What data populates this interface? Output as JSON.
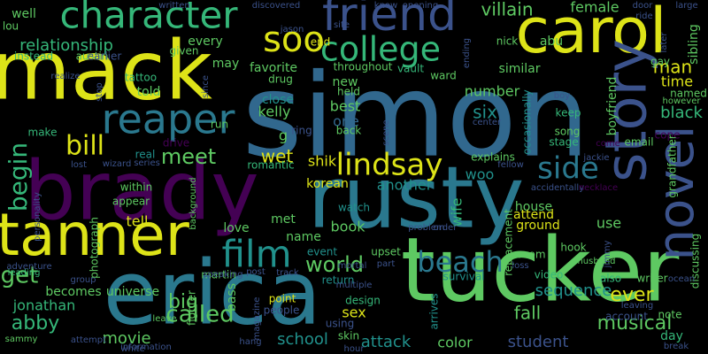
{
  "words": [
    {
      "text": "simon",
      "color": "#31688e"
    },
    {
      "text": "erica",
      "color": "#2a788e"
    },
    {
      "text": "tucker",
      "color": "#5ec962"
    },
    {
      "text": "rusty",
      "color": "#2a788e"
    },
    {
      "text": "brady",
      "color": "#440154"
    },
    {
      "text": "mack",
      "color": "#dde318"
    },
    {
      "text": "carol",
      "color": "#dde318"
    },
    {
      "text": "tanner",
      "color": "#dde318"
    },
    {
      "text": "story",
      "color": "#3b528b"
    },
    {
      "text": "friend",
      "color": "#3b528b"
    },
    {
      "text": "character",
      "color": "#35b779"
    },
    {
      "text": "novel",
      "color": "#3b528b"
    },
    {
      "text": "reaper",
      "color": "#2a788e"
    },
    {
      "text": "college",
      "color": "#35b779"
    },
    {
      "text": "soo",
      "color": "#dde318"
    },
    {
      "text": "beach",
      "color": "#2a788e"
    },
    {
      "text": "lindsay",
      "color": "#dde318"
    },
    {
      "text": "film",
      "color": "#21918c"
    },
    {
      "text": "side",
      "color": "#2a788e"
    },
    {
      "text": "bill",
      "color": "#dde318"
    },
    {
      "text": "begin",
      "color": "#35b779"
    },
    {
      "text": "get",
      "color": "#5ec962"
    },
    {
      "text": "called",
      "color": "#5ec962"
    },
    {
      "text": "world",
      "color": "#5ec962"
    },
    {
      "text": "meet",
      "color": "#5ec962"
    },
    {
      "text": "relationship",
      "color": "#35b779"
    },
    {
      "text": "abby",
      "color": "#35b779"
    },
    {
      "text": "jonathan",
      "color": "#35b779"
    },
    {
      "text": "movie",
      "color": "#5ec962"
    },
    {
      "text": "school",
      "color": "#21918c"
    },
    {
      "text": "musical",
      "color": "#5ec962"
    },
    {
      "text": "fall",
      "color": "#5ec962"
    },
    {
      "text": "ever",
      "color": "#dde318"
    },
    {
      "text": "color",
      "color": "#5ec962"
    },
    {
      "text": "student",
      "color": "#3b528b"
    },
    {
      "text": "attack",
      "color": "#21918c"
    },
    {
      "text": "sequence",
      "color": "#21918c"
    },
    {
      "text": "big",
      "color": "#5ec962"
    },
    {
      "text": "becomes",
      "color": "#5ec962"
    },
    {
      "text": "universe",
      "color": "#5ec962"
    },
    {
      "text": "villain",
      "color": "#5ec962"
    },
    {
      "text": "female",
      "color": "#5ec962"
    },
    {
      "text": "man",
      "color": "#dde318"
    },
    {
      "text": "time",
      "color": "#dde318"
    },
    {
      "text": "black",
      "color": "#35b779"
    },
    {
      "text": "six",
      "color": "#21918c"
    },
    {
      "text": "best",
      "color": "#5ec962"
    },
    {
      "text": "one",
      "color": "#31688e"
    },
    {
      "text": "kelly",
      "color": "#5ec962"
    },
    {
      "text": "wet",
      "color": "#dde318"
    },
    {
      "text": "shik",
      "color": "#dde318"
    },
    {
      "text": "another",
      "color": "#21918c"
    },
    {
      "text": "korean",
      "color": "#dde318"
    },
    {
      "text": "woo",
      "color": "#21918c"
    },
    {
      "text": "wife",
      "color": "#35b779"
    },
    {
      "text": "book",
      "color": "#5ec962"
    },
    {
      "text": "name",
      "color": "#5ec962"
    },
    {
      "text": "met",
      "color": "#5ec962"
    },
    {
      "text": "love",
      "color": "#5ec962"
    },
    {
      "text": "tell",
      "color": "#dde318"
    },
    {
      "text": "told",
      "color": "#5ec962"
    },
    {
      "text": "favorite",
      "color": "#5ec962"
    },
    {
      "text": "may",
      "color": "#5ec962"
    },
    {
      "text": "every",
      "color": "#5ec962"
    },
    {
      "text": "well",
      "color": "#5ec962"
    },
    {
      "text": "number",
      "color": "#5ec962"
    },
    {
      "text": "similar",
      "color": "#5ec962"
    },
    {
      "text": "abu",
      "color": "#5ec962"
    },
    {
      "text": "sibling",
      "color": "#5ec962"
    },
    {
      "text": "named",
      "color": "#5ec962"
    },
    {
      "text": "keep",
      "color": "#35b779"
    },
    {
      "text": "song",
      "color": "#5ec962"
    },
    {
      "text": "stage",
      "color": "#35b779"
    },
    {
      "text": "email",
      "color": "#5ec962"
    },
    {
      "text": "cope",
      "color": "#440154"
    },
    {
      "text": "house",
      "color": "#5ec962"
    },
    {
      "text": "ground",
      "color": "#dde318"
    },
    {
      "text": "attend",
      "color": "#dde318"
    },
    {
      "text": "use",
      "color": "#5ec962"
    },
    {
      "text": "room",
      "color": "#5ec962"
    },
    {
      "text": "sex",
      "color": "#dde318"
    },
    {
      "text": "martin",
      "color": "#5ec962"
    },
    {
      "text": "bass",
      "color": "#5ec962"
    },
    {
      "text": "point",
      "color": "#dde318"
    },
    {
      "text": "people",
      "color": "#3b528b"
    },
    {
      "text": "day",
      "color": "#35b779"
    },
    {
      "text": "account",
      "color": "#3b528b"
    },
    {
      "text": "note",
      "color": "#5ec962"
    },
    {
      "text": "also",
      "color": "#35b779"
    },
    {
      "text": "writer",
      "color": "#5ec962"
    },
    {
      "text": "return",
      "color": "#21918c"
    },
    {
      "text": "video",
      "color": "#35b779"
    },
    {
      "text": "survival",
      "color": "#21918c"
    },
    {
      "text": "design",
      "color": "#35b779"
    },
    {
      "text": "skin",
      "color": "#5ec962"
    },
    {
      "text": "using",
      "color": "#3b528b"
    },
    {
      "text": "nick",
      "color": "#5ec962"
    },
    {
      "text": "drug",
      "color": "#5ec962"
    },
    {
      "text": "new",
      "color": "#5ec962"
    },
    {
      "text": "close",
      "color": "#21918c"
    },
    {
      "text": "held",
      "color": "#5ec962"
    },
    {
      "text": "make",
      "color": "#35b779"
    },
    {
      "text": "back",
      "color": "#5ec962"
    },
    {
      "text": "explains",
      "color": "#5ec962"
    },
    {
      "text": "watch",
      "color": "#21918c"
    },
    {
      "text": "event",
      "color": "#21918c"
    },
    {
      "text": "upset",
      "color": "#5ec962"
    },
    {
      "text": "leading",
      "color": "#35b779"
    },
    {
      "text": "lou",
      "color": "#5ec962"
    },
    {
      "text": "instead",
      "color": "#35b779"
    },
    {
      "text": "austin",
      "color": "#5ec962"
    },
    {
      "text": "tattoo",
      "color": "#35b779"
    },
    {
      "text": "within",
      "color": "#5ec962"
    },
    {
      "text": "appear",
      "color": "#5ec962"
    },
    {
      "text": "drive",
      "color": "#440154"
    },
    {
      "text": "real",
      "color": "#21918c"
    },
    {
      "text": "romantic",
      "color": "#35b779"
    },
    {
      "text": "given",
      "color": "#5ec962"
    },
    {
      "text": "throughout",
      "color": "#5ec962"
    },
    {
      "text": "vault",
      "color": "#35b779"
    },
    {
      "text": "ward",
      "color": "#5ec962"
    },
    {
      "text": "end",
      "color": "#dde318"
    },
    {
      "text": "run",
      "color": "#5ec962"
    },
    {
      "text": "earlier",
      "color": "#3b528b"
    },
    {
      "text": "gay",
      "color": "#5ec962"
    },
    {
      "text": "however",
      "color": "#5ec962"
    },
    {
      "text": "boyfriend",
      "color": "#5ec962"
    },
    {
      "text": "grandfather",
      "color": "#5ec962"
    },
    {
      "text": "discussing",
      "color": "#5ec962"
    },
    {
      "text": "occasionally",
      "color": "#21918c"
    },
    {
      "text": "replacement",
      "color": "#5ec962"
    },
    {
      "text": "arrives",
      "color": "#21918c"
    },
    {
      "text": "hook",
      "color": "#5ec962"
    },
    {
      "text": "husband",
      "color": "#5ec962"
    },
    {
      "text": "fighter",
      "color": "#5ec962"
    },
    {
      "text": "photograph",
      "color": "#5ec962"
    },
    {
      "text": "background",
      "color": "#5ec962"
    },
    {
      "text": "leave",
      "color": "#5ec962"
    },
    {
      "text": "attempt",
      "color": "#3b528b"
    },
    {
      "text": "sammy",
      "color": "#5ec962"
    },
    {
      "text": "information",
      "color": "#3b528b"
    },
    {
      "text": "hang",
      "color": "#3b528b"
    },
    {
      "text": "hour",
      "color": "#3b528b"
    },
    {
      "text": "break",
      "color": "#3b528b"
    },
    {
      "text": "door",
      "color": "#3b528b"
    },
    {
      "text": "ride",
      "color": "#3b528b"
    },
    {
      "text": "large",
      "color": "#3b528b"
    },
    {
      "text": "later",
      "color": "#3b528b"
    },
    {
      "text": "opening",
      "color": "#3b528b"
    },
    {
      "text": "know",
      "color": "#3b528b"
    },
    {
      "text": "discovered",
      "color": "#3b528b"
    },
    {
      "text": "written",
      "color": "#3b528b"
    },
    {
      "text": "white",
      "color": "#3b528b"
    },
    {
      "text": "site",
      "color": "#3b528b"
    },
    {
      "text": "jason",
      "color": "#3b528b"
    },
    {
      "text": "realize",
      "color": "#3b528b"
    },
    {
      "text": "stop",
      "color": "#3b528b"
    },
    {
      "text": "since",
      "color": "#3b528b"
    },
    {
      "text": "wizard",
      "color": "#3b528b"
    },
    {
      "text": "series",
      "color": "#3b528b"
    },
    {
      "text": "lost",
      "color": "#3b528b"
    },
    {
      "text": "personality",
      "color": "#3b528b"
    },
    {
      "text": "adventure",
      "color": "#3b528b"
    },
    {
      "text": "group",
      "color": "#3b528b"
    },
    {
      "text": "speaking",
      "color": "#3b528b"
    },
    {
      "text": "post",
      "color": "#3b528b"
    },
    {
      "text": "track",
      "color": "#3b528b"
    },
    {
      "text": "magazine",
      "color": "#3b528b"
    },
    {
      "text": "multiple",
      "color": "#3b528b"
    },
    {
      "text": "mortal",
      "color": "#3b528b"
    },
    {
      "text": "part",
      "color": "#3b528b"
    },
    {
      "text": "loss",
      "color": "#3b528b"
    },
    {
      "text": "jimmy",
      "color": "#3b528b"
    },
    {
      "text": "order",
      "color": "#3b528b"
    },
    {
      "text": "problem",
      "color": "#3b528b"
    },
    {
      "text": "fellow",
      "color": "#3b528b"
    },
    {
      "text": "accidentally",
      "color": "#3b528b"
    },
    {
      "text": "necklace",
      "color": "#440154"
    },
    {
      "text": "jackie",
      "color": "#3b528b"
    },
    {
      "text": "come",
      "color": "#440154"
    },
    {
      "text": "center",
      "color": "#3b528b"
    },
    {
      "text": "boy",
      "color": "#3b528b"
    },
    {
      "text": "scene",
      "color": "#3b528b"
    },
    {
      "text": "ocean",
      "color": "#3b528b"
    },
    {
      "text": "ending",
      "color": "#3b528b"
    },
    {
      "text": "leaving",
      "color": "#3b528b"
    },
    {
      "text": "ring",
      "color": "#3b528b"
    },
    {
      "text": "g",
      "color": "#5ec962"
    }
  ]
}
